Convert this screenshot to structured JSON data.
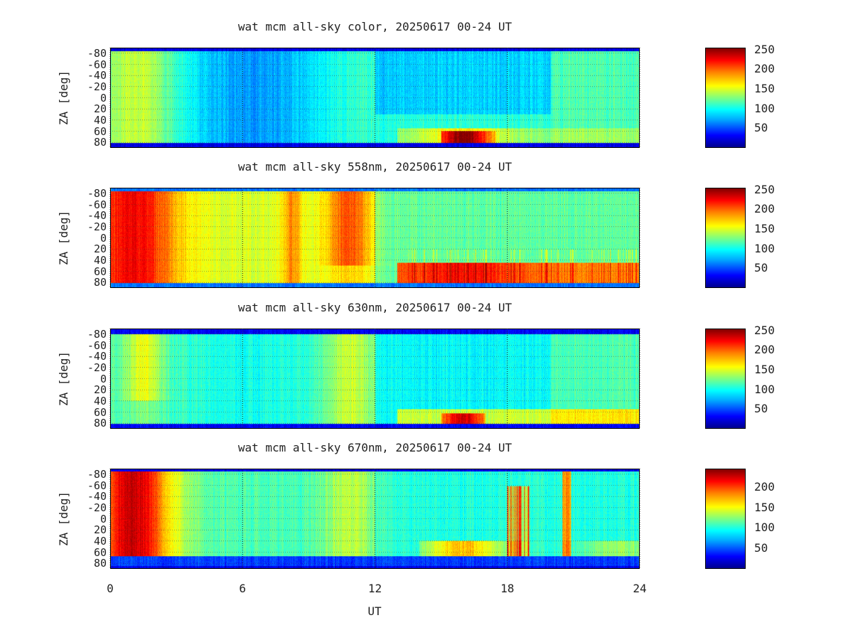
{
  "chart_data": [
    {
      "type": "heatmap",
      "title": "wat mcm all-sky color, 20250617 00-24 UT",
      "ylabel": "ZA [deg]",
      "xlabel": "",
      "x_ticks": [
        "0",
        "6",
        "12",
        "18",
        "24"
      ],
      "xlim": [
        0,
        24
      ],
      "y_ticks": [
        "-80",
        "-60",
        "-40",
        "-20",
        "0",
        "20",
        "40",
        "60",
        "80"
      ],
      "ylim": [
        -90,
        90
      ],
      "colorbar_ticks": [
        "250",
        "200",
        "150",
        "100",
        "50"
      ],
      "colorbar_values": [
        250,
        200,
        150,
        100,
        50
      ],
      "clim": [
        0,
        255
      ],
      "colormap": "jet",
      "grid": true
    },
    {
      "type": "heatmap",
      "title": "wat mcm all-sky 558nm, 20250617 00-24 UT",
      "ylabel": "ZA [deg]",
      "xlabel": "",
      "x_ticks": [
        "0",
        "6",
        "12",
        "18",
        "24"
      ],
      "xlim": [
        0,
        24
      ],
      "y_ticks": [
        "-80",
        "-60",
        "-40",
        "-20",
        "0",
        "20",
        "40",
        "60",
        "80"
      ],
      "ylim": [
        -90,
        90
      ],
      "colorbar_ticks": [
        "250",
        "200",
        "150",
        "100",
        "50"
      ],
      "colorbar_values": [
        250,
        200,
        150,
        100,
        50
      ],
      "clim": [
        0,
        255
      ],
      "colormap": "jet",
      "grid": true
    },
    {
      "type": "heatmap",
      "title": "wat mcm all-sky 630nm, 20250617 00-24 UT",
      "ylabel": "ZA [deg]",
      "xlabel": "",
      "x_ticks": [
        "0",
        "6",
        "12",
        "18",
        "24"
      ],
      "xlim": [
        0,
        24
      ],
      "y_ticks": [
        "-80",
        "-60",
        "-40",
        "-20",
        "0",
        "20",
        "40",
        "60",
        "80"
      ],
      "ylim": [
        -90,
        90
      ],
      "colorbar_ticks": [
        "250",
        "200",
        "150",
        "100",
        "50"
      ],
      "colorbar_values": [
        250,
        200,
        150,
        100,
        50
      ],
      "clim": [
        0,
        255
      ],
      "colormap": "jet",
      "grid": true
    },
    {
      "type": "heatmap",
      "title": "wat mcm all-sky 670nm, 20250617 00-24 UT",
      "ylabel": "ZA [deg]",
      "xlabel": "UT",
      "x_ticks": [
        "0",
        "6",
        "12",
        "18",
        "24"
      ],
      "xlim": [
        0,
        24
      ],
      "y_ticks": [
        "-80",
        "-60",
        "-40",
        "-20",
        "0",
        "20",
        "40",
        "60",
        "80"
      ],
      "ylim": [
        -90,
        90
      ],
      "colorbar_ticks": [
        "200",
        "150",
        "100",
        "50"
      ],
      "colorbar_values": [
        200,
        150,
        100,
        50
      ],
      "clim": [
        0,
        245
      ],
      "colormap": "jet",
      "grid": true
    }
  ]
}
